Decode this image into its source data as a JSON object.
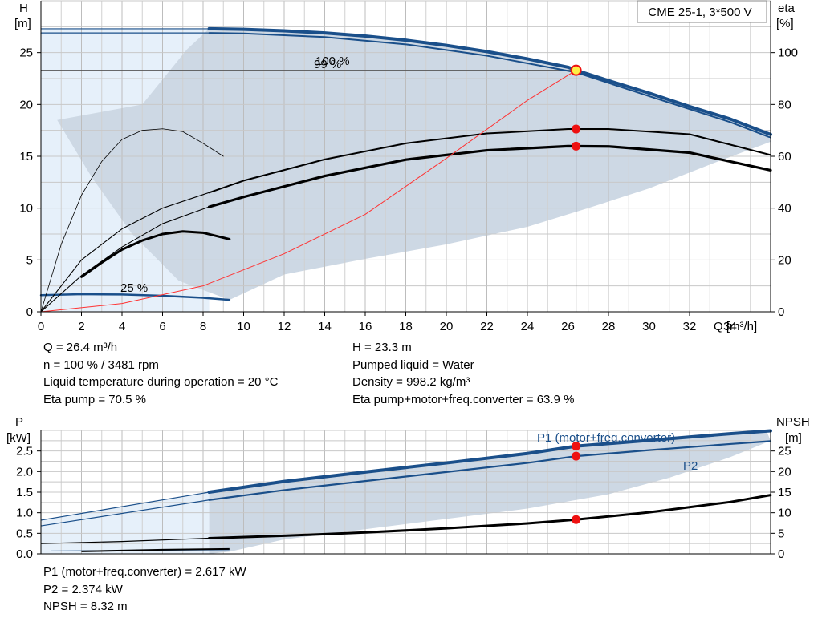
{
  "title_box": "CME 25-1, 3*500 V",
  "chart_data": [
    {
      "type": "line",
      "name": "head",
      "ylabel": "H",
      "yunit": "[m]",
      "xlabel": "Q [m³/h]",
      "y2label": "eta",
      "y2unit": "[%]",
      "xlim": [
        0,
        36
      ],
      "xticks": [
        0,
        2,
        4,
        6,
        8,
        10,
        12,
        14,
        16,
        18,
        20,
        22,
        24,
        26,
        28,
        30,
        32,
        34
      ],
      "ylim": [
        0,
        30
      ],
      "yticks": [
        0,
        5,
        10,
        15,
        20,
        25
      ],
      "y2lim": [
        0,
        120
      ],
      "y2ticks": [
        0,
        20,
        40,
        60,
        80,
        100
      ],
      "grid": true,
      "curve_labels": [
        "100 %",
        "99 %",
        "25 %"
      ],
      "series": [
        {
          "role": "H 100% (rated speed)",
          "color": "#1a4f8a",
          "x": [
            0,
            8.3,
            10,
            12,
            14,
            16,
            18,
            20,
            22,
            24,
            26,
            26.4,
            28,
            30,
            32,
            34,
            36
          ],
          "y": [
            27.3,
            27.3,
            27.25,
            27.1,
            26.9,
            26.6,
            26.2,
            25.7,
            25.1,
            24.4,
            23.6,
            23.3,
            22.3,
            21.1,
            19.8,
            18.6,
            17.1
          ]
        },
        {
          "role": "H 99%",
          "color": "#1a4f8a",
          "x": [
            0,
            8.3,
            10,
            14,
            18,
            22,
            26.4,
            30,
            34,
            36
          ],
          "y": [
            26.9,
            26.9,
            26.85,
            26.5,
            25.8,
            24.7,
            23.1,
            20.8,
            18.3,
            16.8
          ]
        },
        {
          "role": "H 25%",
          "color": "#1a4f8a",
          "x": [
            0,
            2,
            4,
            6,
            8,
            9.3
          ],
          "y": [
            1.6,
            1.7,
            1.67,
            1.55,
            1.35,
            1.15
          ]
        },
        {
          "role": "Eta pump 100%",
          "color": "#000000",
          "x": [
            0,
            2,
            4,
            6,
            8.3,
            10,
            14,
            18,
            22,
            26,
            28,
            32,
            36
          ],
          "y": [
            0,
            20,
            32,
            40,
            46,
            50.6,
            58.8,
            65,
            68.8,
            70.5,
            70.5,
            68.5,
            60.5
          ]
        },
        {
          "role": "Eta pump+motor+freq.converter 100%",
          "color": "#000000",
          "x": [
            0,
            2,
            4,
            6,
            8.3,
            10,
            14,
            18,
            22,
            26,
            28,
            32,
            36
          ],
          "y": [
            0,
            14,
            25,
            34,
            40.5,
            44.3,
            52.4,
            58.7,
            62.3,
            63.9,
            63.8,
            61.4,
            54.6
          ]
        },
        {
          "role": "Eta 25% thin",
          "color": "#000000",
          "x": [
            0,
            1,
            2,
            3,
            4,
            5,
            6,
            7,
            8,
            9
          ],
          "y": [
            0,
            26,
            45,
            58,
            66.5,
            70,
            70.6,
            69.5,
            65,
            60
          ]
        },
        {
          "role": "Eta 25%",
          "color": "#000000",
          "x": [
            2,
            3,
            4,
            5,
            6,
            7,
            8,
            9.3
          ],
          "y": [
            13.5,
            19,
            24,
            27.5,
            30,
            31,
            30.5,
            28
          ]
        },
        {
          "role": "Control curve",
          "color": "#ff3333",
          "x": [
            0,
            4,
            8,
            12,
            16,
            20,
            24,
            26.4
          ],
          "y": [
            0,
            0.8,
            2.5,
            5.6,
            9.4,
            14.8,
            20.4,
            23.3
          ]
        }
      ],
      "duty_point": {
        "q": 26.4,
        "h": 23.3,
        "eta_pump": 70.5,
        "eta_total": 63.9
      }
    },
    {
      "type": "line",
      "name": "power",
      "ylabel": "P",
      "yunit": "[kW]",
      "y2label": "NPSH",
      "y2unit": "[m]",
      "xlim": [
        0,
        36
      ],
      "ylim": [
        0,
        3.0
      ],
      "yticks": [
        0.0,
        0.5,
        1.0,
        1.5,
        2.0,
        2.5
      ],
      "ytick_labels": [
        "0.0",
        "0.5",
        "1.0",
        "1.5",
        "2.0",
        "2.5"
      ],
      "y2lim": [
        0,
        30
      ],
      "y2ticks": [
        0,
        5,
        10,
        15,
        20,
        25
      ],
      "grid": true,
      "series_labels": [
        "P1 (motor+freq.converter)",
        "P2"
      ],
      "series": [
        {
          "role": "P1 100%",
          "color": "#1a4f8a",
          "x": [
            0,
            8.3,
            12,
            16,
            20,
            24,
            26.4,
            30,
            34,
            36
          ],
          "y": [
            0.82,
            1.5,
            1.76,
            1.99,
            2.21,
            2.44,
            2.617,
            2.76,
            2.92,
            2.99
          ]
        },
        {
          "role": "P2 100%",
          "color": "#1a4f8a",
          "x": [
            0,
            8.3,
            12,
            16,
            20,
            24,
            26.4,
            30,
            34,
            36
          ],
          "y": [
            0.68,
            1.31,
            1.55,
            1.77,
            1.99,
            2.21,
            2.374,
            2.52,
            2.67,
            2.74
          ]
        },
        {
          "role": "NPSH",
          "color": "#000000",
          "x": [
            0,
            4,
            8.3,
            12,
            16,
            20,
            24,
            26.4,
            30,
            34,
            36
          ],
          "y": [
            2.5,
            3.0,
            3.8,
            4.4,
            5.2,
            6.2,
            7.4,
            8.32,
            10.1,
            12.6,
            14.3
          ]
        }
      ],
      "duty_point": {
        "q": 26.4,
        "p1": 2.617,
        "p2": 2.374,
        "npsh": 8.32
      }
    }
  ],
  "info_top_left": [
    "Q = 26.4 m³/h",
    "n = 100 % / 3481 rpm",
    "Liquid temperature during operation = 20 °C",
    "Eta pump = 70.5 %"
  ],
  "info_top_right": [
    "H = 23.3 m",
    "Pumped liquid = Water",
    "Density = 998.2 kg/m³",
    "Eta pump+motor+freq.converter = 63.9 %"
  ],
  "info_bottom": [
    "P1 (motor+freq.converter) = 2.617 kW",
    "P2 = 2.374 kW",
    "NPSH = 8.32 m"
  ],
  "colors": {
    "curve_blue": "#1a4f8a",
    "operating_area": "#cdd8e4",
    "low_area": "#e6f0fa",
    "control_curve": "#ff3333",
    "duty_marker": "#ee1111",
    "highlight_marker": "#ffee44"
  }
}
